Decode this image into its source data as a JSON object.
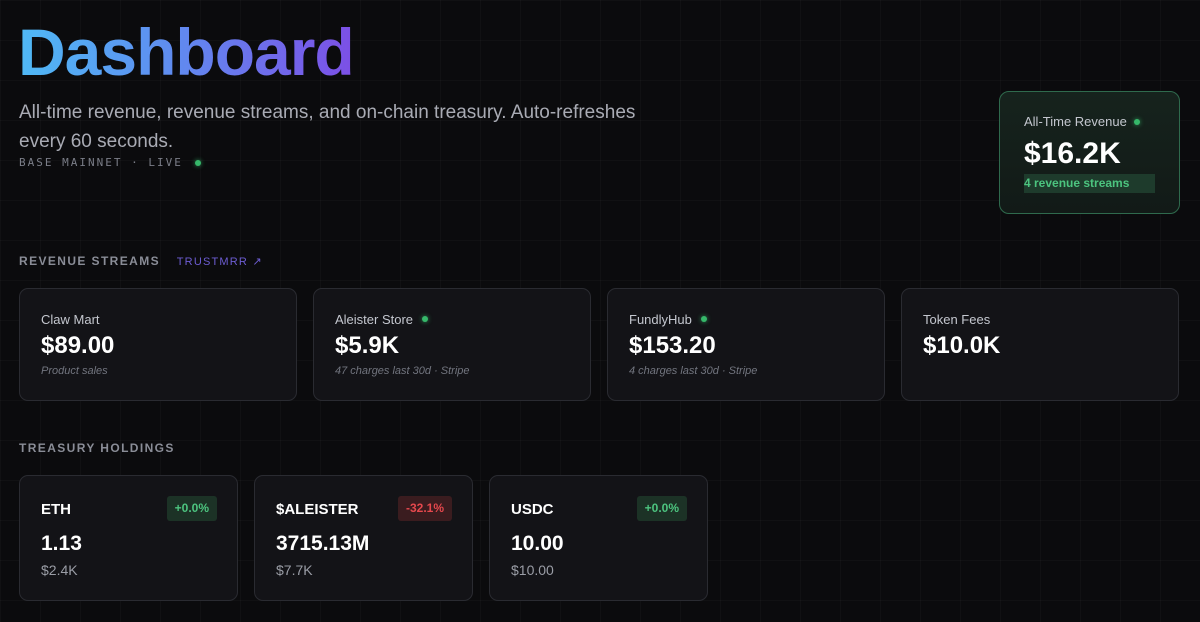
{
  "header": {
    "title": "Dashboard",
    "subtitle": "All-time revenue, revenue streams, and on-chain treasury. Auto-refreshes every 60 seconds.",
    "network": "BASE MAINNET · LIVE"
  },
  "summary": {
    "label": "All-Time Revenue",
    "value": "$16.2K",
    "streams": "4 revenue streams"
  },
  "revenue_section": {
    "label": "REVENUE STREAMS",
    "link": "TRUSTMRR ↗"
  },
  "streams": [
    {
      "name": "Claw Mart",
      "amount": "$89.00",
      "note": "Product sales",
      "live": false
    },
    {
      "name": "Aleister Store",
      "amount": "$5.9K",
      "note": "47 charges last 30d · Stripe",
      "live": true
    },
    {
      "name": "FundlyHub",
      "amount": "$153.20",
      "note": "4 charges last 30d · Stripe",
      "live": true
    },
    {
      "name": "Token Fees",
      "amount": "$10.0K",
      "note": "",
      "live": false
    }
  ],
  "treasury_section": {
    "label": "TREASURY HOLDINGS"
  },
  "holdings": [
    {
      "symbol": "ETH",
      "change": "+0.0%",
      "trend": "positive",
      "balance": "1.13",
      "usd": "$2.4K"
    },
    {
      "symbol": "$ALEISTER",
      "change": "-32.1%",
      "trend": "negative",
      "balance": "3715.13M",
      "usd": "$7.7K"
    },
    {
      "symbol": "USDC",
      "change": "+0.0%",
      "trend": "positive",
      "balance": "10.00",
      "usd": "$10.00"
    }
  ],
  "colors": {
    "accent_green": "#36b86a",
    "negative_red": "#e5484d",
    "title_gradient_start": "#4fb9f5",
    "title_gradient_end": "#7c4fe6",
    "link_purple": "#6d5dd3"
  }
}
